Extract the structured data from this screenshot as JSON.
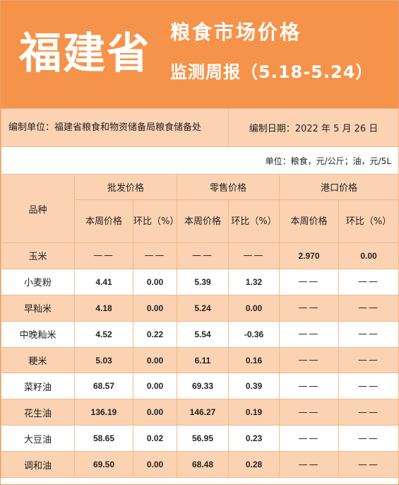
{
  "header": {
    "province": "福建省",
    "title_line1": "粮食市场价格",
    "title_line2": "监测周报（5.18-5.24）"
  },
  "meta": {
    "compiler": "编制单位：福建省粮食和物资储备局粮食储备处",
    "date": "编制日期：2022 年 5 月 26 日",
    "unit": "单位：粮食，元/公斤；油，元/5L"
  },
  "table": {
    "variety_header": "品种",
    "groups": [
      "批发价格",
      "零售价格",
      "港口价格"
    ],
    "sub_headers": [
      "本周价格",
      "环比（%）",
      "本周价格",
      "环比（%）",
      "本周价格",
      "环比（%）"
    ],
    "rows": [
      {
        "name": "玉米",
        "cells": [
          "——",
          "——",
          "——",
          "——",
          "2.970",
          "0.00"
        ]
      },
      {
        "name": "小麦粉",
        "cells": [
          "4.41",
          "0.00",
          "5.39",
          "1.32",
          "——",
          "——"
        ]
      },
      {
        "name": "早籼米",
        "cells": [
          "4.18",
          "0.00",
          "5.24",
          "0.00",
          "——",
          "——"
        ]
      },
      {
        "name": "中晚籼米",
        "cells": [
          "4.52",
          "0.22",
          "5.54",
          "-0.36",
          "——",
          "——"
        ]
      },
      {
        "name": "粳米",
        "cells": [
          "5.03",
          "0.00",
          "6.11",
          "0.16",
          "——",
          "——"
        ]
      },
      {
        "name": "菜籽油",
        "cells": [
          "68.57",
          "0.00",
          "69.33",
          "0.39",
          "——",
          "——"
        ]
      },
      {
        "name": "花生油",
        "cells": [
          "136.19",
          "0.00",
          "146.27",
          "0.19",
          "——",
          "——"
        ]
      },
      {
        "name": "大豆油",
        "cells": [
          "58.65",
          "0.02",
          "56.95",
          "0.23",
          "——",
          "——"
        ]
      },
      {
        "name": "调和油",
        "cells": [
          "69.50",
          "0.00",
          "68.48",
          "0.28",
          "——",
          "——"
        ]
      }
    ]
  },
  "colors": {
    "header_bg": "#f5934a",
    "row_orange": "#fbd3b2",
    "border": "#f0b98c"
  }
}
